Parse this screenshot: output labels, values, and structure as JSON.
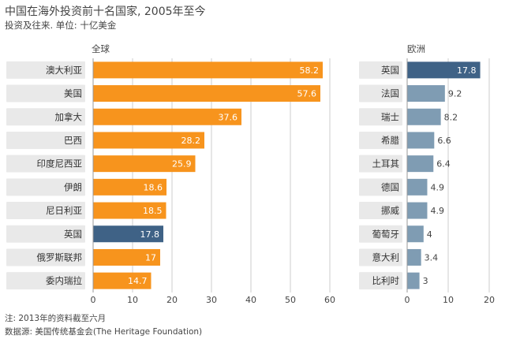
{
  "header": {
    "title": "中国在海外投资前十名国家, 2005年至今",
    "subtitle": "投资及往来. 单位: 十亿美金"
  },
  "panels": {
    "left_label": "全球",
    "right_label": "欧洲"
  },
  "footer": {
    "note": "注: 2013年的资料截至六月",
    "source": "数据源: 美国传统基金会(The Heritage Foundation)"
  },
  "colors": {
    "orange": "#F7941D",
    "highlight": "#3F6286",
    "steel": "#7F9CB3",
    "grid": "#cccccc"
  },
  "chart_data": [
    {
      "type": "bar",
      "orientation": "horizontal",
      "title": "全球",
      "categories": [
        "澳大利亚",
        "美国",
        "加拿大",
        "巴西",
        "印度尼西亚",
        "伊朗",
        "尼日利亚",
        "英国",
        "俄罗斯联邦",
        "委内瑞拉"
      ],
      "values": [
        58.2,
        57.6,
        37.6,
        28.2,
        25.9,
        18.6,
        18.5,
        17.8,
        17,
        14.7
      ],
      "labels": [
        "58.2",
        "57.6",
        "37.6",
        "28.2",
        "25.9",
        "18.6",
        "18.5",
        "17.8",
        "17",
        "14.7"
      ],
      "highlight": [
        "英国"
      ],
      "xlim": [
        0,
        60
      ],
      "xticks": [
        "0",
        "10",
        "20",
        "30",
        "40",
        "50",
        "60"
      ],
      "grid": true
    },
    {
      "type": "bar",
      "orientation": "horizontal",
      "title": "欧洲",
      "categories": [
        "英国",
        "法国",
        "瑞士",
        "希腊",
        "土耳其",
        "德国",
        "挪威",
        "葡萄牙",
        "意大利",
        "比利时"
      ],
      "values": [
        17.8,
        9.2,
        8.2,
        6.6,
        6.4,
        4.9,
        4.9,
        4,
        3.4,
        3
      ],
      "labels": [
        "17.8",
        "9.2",
        "8.2",
        "6.6",
        "6.4",
        "4.9",
        "4.9",
        "4",
        "3.4",
        "3"
      ],
      "highlight": [
        "英国"
      ],
      "xlim": [
        0,
        20
      ],
      "xticks": [
        "0",
        "10",
        "20"
      ],
      "grid": true
    }
  ]
}
